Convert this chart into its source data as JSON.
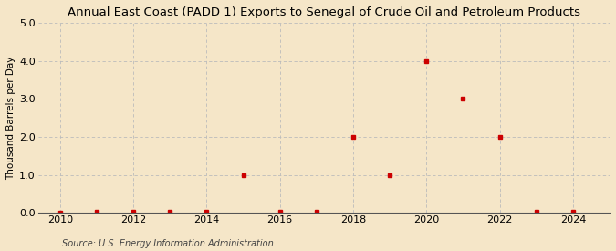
{
  "title": "Annual East Coast (PADD 1) Exports to Senegal of Crude Oil and Petroleum Products",
  "ylabel": "Thousand Barrels per Day",
  "source": "Source: U.S. Energy Information Administration",
  "background_color": "#f5e6c8",
  "years": [
    2010,
    2011,
    2012,
    2013,
    2014,
    2015,
    2016,
    2017,
    2018,
    2019,
    2020,
    2021,
    2022,
    2023,
    2024
  ],
  "values": [
    0.0,
    0.02,
    0.02,
    0.02,
    0.02,
    1.0,
    0.02,
    0.02,
    2.0,
    1.0,
    4.0,
    3.0,
    2.0,
    0.02,
    0.02
  ],
  "xlim": [
    2009.4,
    2025.0
  ],
  "ylim": [
    0.0,
    5.0
  ],
  "yticks": [
    0.0,
    1.0,
    2.0,
    3.0,
    4.0,
    5.0
  ],
  "xticks": [
    2010,
    2012,
    2014,
    2016,
    2018,
    2020,
    2022,
    2024
  ],
  "marker_color": "#cc0000",
  "marker_size": 3.5,
  "grid_color": "#bbbbbb",
  "title_fontsize": 9.5,
  "label_fontsize": 7.5,
  "tick_fontsize": 8,
  "source_fontsize": 7
}
